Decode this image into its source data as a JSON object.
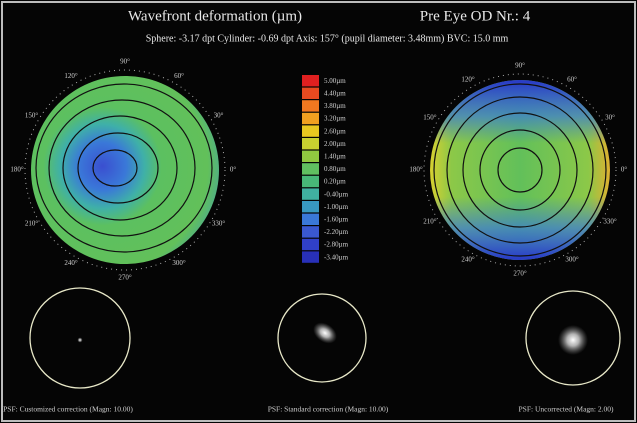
{
  "header": {
    "title": "Wavefront deformation (µm)",
    "eye": "Pre  Eye OD Nr.: 4",
    "subtitle": "Sphere: -3.17 dpt   Cylinder: -0.69 dpt   Axis:  157° (pupil diameter:  3.48mm)   BVC:  15.0 mm"
  },
  "map_angles": [
    "0°",
    "30°",
    "60°",
    "90°",
    "120°",
    "150°",
    "180°",
    "210°",
    "240°",
    "270°",
    "300°",
    "330°"
  ],
  "colorbar": {
    "labels": [
      "5.00µm",
      "4.40µm",
      "3.80µm",
      "3.20µm",
      "2.60µm",
      "2.00µm",
      "1.40µm",
      "0.80µm",
      "0.20µm",
      "-0.40µm",
      "-1.00µm",
      "-1.60µm",
      "-2.20µm",
      "-2.80µm",
      "-3.40µm"
    ]
  },
  "psf_captions": [
    "PSF: Customized correction (Magn: 10.00)",
    "PSF: Standard correction (Magn: 10.00)",
    "PSF: Uncorrected (Magn: 2.00)"
  ]
}
